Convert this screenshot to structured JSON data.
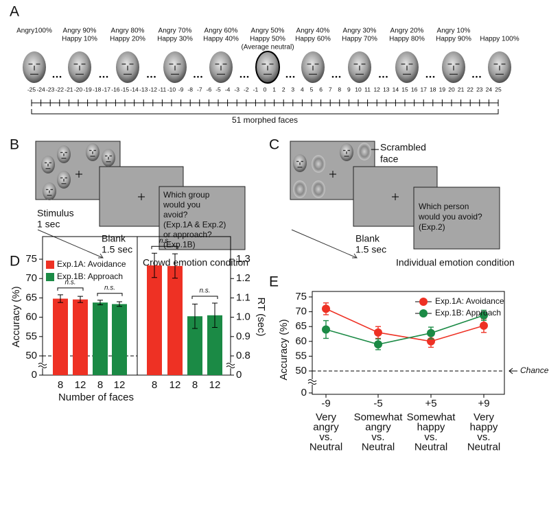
{
  "panel_labels": [
    "A",
    "B",
    "C",
    "D",
    "E"
  ],
  "panel_a": {
    "faces": [
      [
        "Angry100%"
      ],
      [
        "Angry 90%",
        "Happy 10%"
      ],
      [
        "Angry 80%",
        "Happy 20%"
      ],
      [
        "Angry 70%",
        "Happy 30%"
      ],
      [
        "Angry 60%",
        "Happy 40%"
      ],
      [
        "Angry 50%",
        "Happy 50%",
        "(Average neutral)"
      ],
      [
        "Angry 40%",
        "Happy 60%"
      ],
      [
        "Angry 30%",
        "Happy 70%"
      ],
      [
        "Angry 20%",
        "Happy 80%"
      ],
      [
        "Angry 10%",
        "Happy 90%"
      ],
      [
        "Happy 100%"
      ]
    ],
    "scale": [
      -25,
      -24,
      -23,
      -22,
      -21,
      -20,
      -19,
      -18,
      -17,
      -16,
      -15,
      -14,
      -13,
      -12,
      -11,
      -10,
      -9,
      -8,
      -7,
      -6,
      -5,
      -4,
      -3,
      -2,
      -1,
      0,
      1,
      2,
      3,
      4,
      5,
      6,
      7,
      8,
      9,
      10,
      11,
      12,
      13,
      14,
      15,
      16,
      17,
      18,
      19,
      20,
      21,
      22,
      23,
      24,
      25
    ],
    "caption": "51 morphed faces"
  },
  "panel_b": {
    "stimulus": "Stimulus",
    "stimulus_time": "1 sec",
    "blank": "Blank",
    "blank_time": "1.5 sec",
    "question_lines": [
      "Which group",
      "would you",
      "avoid?",
      "(Exp.1A & Exp.2)",
      "or approach?",
      "(Exp.1B)"
    ],
    "condition": "Crowd emotion condition"
  },
  "panel_c": {
    "scrambled_lines": [
      "Scrambled",
      "face"
    ],
    "blank": "Blank",
    "blank_time": "1.5 sec",
    "question_lines": [
      "Which person",
      "would you avoid?",
      "(Exp.2)"
    ],
    "condition": "Individual emotion condition"
  },
  "chart_data": [
    {
      "type": "bar",
      "xlabel": "Number of faces",
      "ylabel": "Accuracy (%)",
      "y2label": "RT (sec)",
      "categories": [
        "8",
        "12"
      ],
      "annotation": "n.s.",
      "legend": "upper left",
      "axis_break": true,
      "ylim": [
        0,
        75
      ],
      "yticks": [
        0,
        50,
        55,
        60,
        65,
        70,
        75
      ],
      "y2lim": [
        0,
        1.3
      ],
      "y2ticks": [
        0,
        0.8,
        0.9,
        {
          "value": 1.0,
          "label": "1.0"
        },
        1.1,
        1.2,
        1.3
      ],
      "series": [
        {
          "name": "Exp.1A: Avoidance",
          "color": "#ee3124",
          "values": [
            64.8,
            64.6
          ],
          "errors": [
            1.0,
            0.8
          ],
          "rt_values": [
            1.268,
            1.265
          ],
          "rt_errors": [
            0.063,
            0.063
          ]
        },
        {
          "name": "Exp.1B: Approach",
          "color": "#1b8a45",
          "values": [
            63.8,
            63.4
          ],
          "errors": [
            0.6,
            0.6
          ],
          "rt_values": [
            1.005,
            1.01
          ],
          "rt_errors": [
            0.063,
            0.063
          ]
        }
      ]
    },
    {
      "type": "line",
      "ylabel": "Accuracy (%)",
      "chance_label": "Chance",
      "legend": "upper right",
      "axis_break": true,
      "categories": [
        "-9",
        "-5",
        "+5",
        "+9"
      ],
      "category_descriptions": [
        [
          "Very",
          "angry",
          "vs.",
          "Neutral"
        ],
        [
          "Somewhat",
          "angry",
          "vs.",
          "Neutral"
        ],
        [
          "Somewhat",
          "happy",
          "vs.",
          "Neutral"
        ],
        [
          "Very",
          "happy",
          "vs.",
          "Neutral"
        ]
      ],
      "ylim": [
        0,
        75
      ],
      "yticks": [
        0,
        50,
        55,
        60,
        65,
        70,
        75
      ],
      "series": [
        {
          "name": "Exp.1A: Avoidance",
          "color": "#ee3124",
          "values": [
            71.0,
            63.0,
            60.0,
            65.3
          ],
          "errors": [
            2.0,
            2.0,
            2.0,
            2.3
          ]
        },
        {
          "name": "Exp.1B: Approach",
          "color": "#1b8a45",
          "values": [
            64.0,
            59.0,
            62.8,
            68.8
          ],
          "errors": [
            3.0,
            1.8,
            2.0,
            1.7
          ]
        }
      ]
    }
  ]
}
